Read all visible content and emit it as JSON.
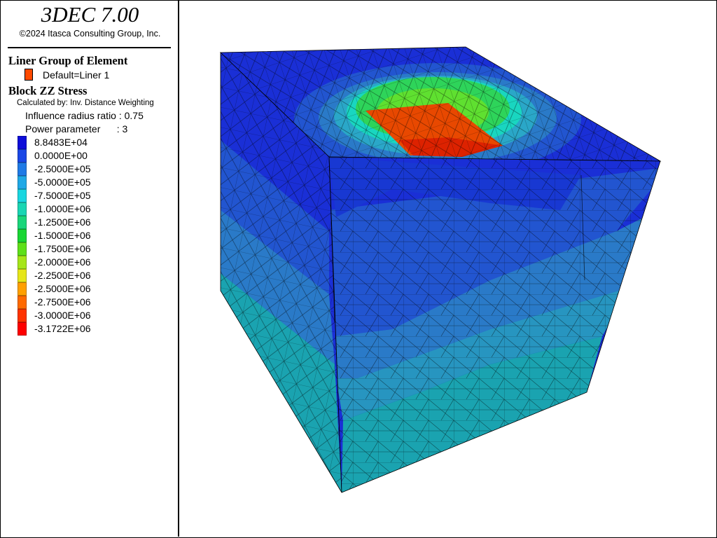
{
  "app": {
    "title": "3DEC 7.00",
    "copyright": "©2024 Itasca Consulting Group, Inc."
  },
  "liner": {
    "heading": "Liner Group of Element",
    "entries": [
      {
        "label": "Default=Liner 1",
        "color": "#ff4a00"
      }
    ]
  },
  "contour": {
    "heading": "Block  ZZ Stress",
    "method": "Calculated by: Inv. Distance Weighting",
    "influence": "Influence radius ratio : 0.75",
    "power": "Power parameter      : 3",
    "levels": [
      {
        "label": "8.8483E+04",
        "color": "#0d0dd9"
      },
      {
        "label": "0.0000E+00",
        "color": "#1a47e6"
      },
      {
        "label": "-2.5000E+05",
        "color": "#1f7ae6"
      },
      {
        "label": "-5.0000E+05",
        "color": "#1fa8e6"
      },
      {
        "label": "-7.5000E+05",
        "color": "#19d6e0"
      },
      {
        "label": "-1.0000E+06",
        "color": "#19d6b3"
      },
      {
        "label": "-1.2500E+06",
        "color": "#19d67a"
      },
      {
        "label": "-1.5000E+06",
        "color": "#19d633"
      },
      {
        "label": "-1.7500E+06",
        "color": "#5ee019"
      },
      {
        "label": "-2.0000E+06",
        "color": "#a6e619"
      },
      {
        "label": "-2.2500E+06",
        "color": "#e6e619"
      },
      {
        "label": "-2.5000E+06",
        "color": "#ffa000"
      },
      {
        "label": "-2.7500E+06",
        "color": "#ff6a00"
      },
      {
        "label": "-3.0000E+06",
        "color": "#ff3300"
      },
      {
        "label": "-3.1722E+06",
        "color": "#ff0000"
      }
    ]
  },
  "model_colors": {
    "top_blue": "#1a2fd6",
    "mid_blue": "#2255d0",
    "lower_blue": "#2a7ac8",
    "teal": "#1aa3b0",
    "green": "#2ed45a",
    "light_green": "#5fe030",
    "red": "#dd2200"
  }
}
